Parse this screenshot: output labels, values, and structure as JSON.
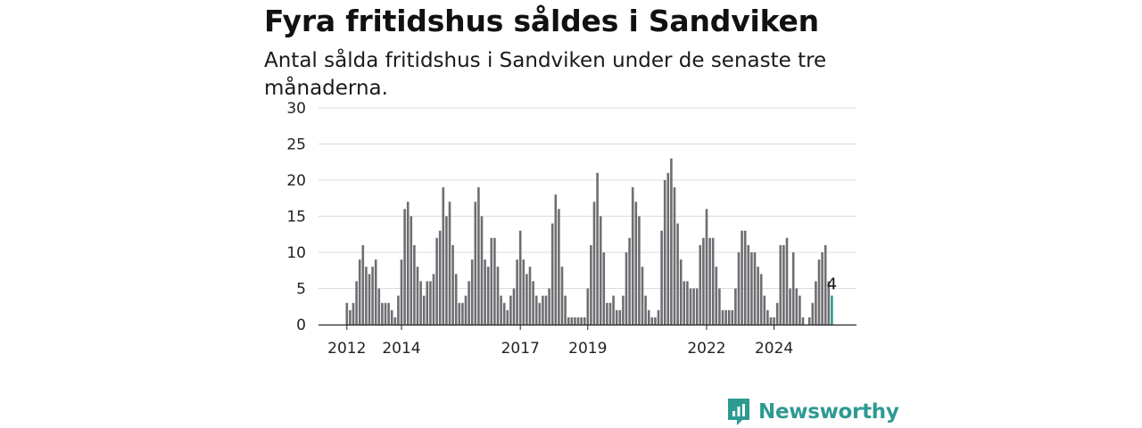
{
  "header": {
    "title": "Fyra fritidshus såldes i Sandviken",
    "subtitle": "Antal sålda fritidshus i Sandviken under de senaste tre månaderna."
  },
  "brand": {
    "name": "Newsworthy",
    "color": "#2e9a92",
    "icon": "newsworthy-logo-icon"
  },
  "chart_data": {
    "type": "bar",
    "y_ticks": [
      "0",
      "5",
      "10",
      "15",
      "20",
      "25",
      "30"
    ],
    "ylim": [
      0,
      30
    ],
    "x_ticks": [
      {
        "label": "2012",
        "index": 0
      },
      {
        "label": "2014",
        "index": 17
      },
      {
        "label": "2017",
        "index": 54
      },
      {
        "label": "2019",
        "index": 75
      },
      {
        "label": "2022",
        "index": 112
      },
      {
        "label": "2024",
        "index": 133
      }
    ],
    "bar_color": "#6e6e72",
    "highlight_color": "#2a9d8f",
    "highlight_label": "4",
    "grid": true,
    "values": [
      3,
      2,
      3,
      6,
      9,
      11,
      8,
      7,
      8,
      9,
      5,
      3,
      3,
      3,
      2,
      1,
      4,
      9,
      16,
      17,
      15,
      11,
      8,
      6,
      4,
      6,
      6,
      7,
      12,
      13,
      19,
      15,
      17,
      11,
      7,
      3,
      3,
      4,
      6,
      9,
      17,
      19,
      15,
      9,
      8,
      12,
      12,
      8,
      4,
      3,
      2,
      4,
      5,
      9,
      13,
      9,
      7,
      8,
      6,
      4,
      3,
      4,
      4,
      5,
      14,
      18,
      16,
      8,
      4,
      1,
      1,
      1,
      1,
      1,
      1,
      5,
      11,
      17,
      21,
      15,
      10,
      3,
      3,
      4,
      2,
      2,
      4,
      10,
      12,
      19,
      17,
      15,
      8,
      4,
      2,
      1,
      1,
      2,
      13,
      20,
      21,
      23,
      19,
      14,
      9,
      6,
      6,
      5,
      5,
      5,
      11,
      12,
      16,
      12,
      12,
      8,
      5,
      2,
      2,
      2,
      2,
      5,
      10,
      13,
      13,
      11,
      10,
      10,
      8,
      7,
      4,
      2,
      1,
      1,
      3,
      11,
      11,
      12,
      5,
      10,
      5,
      4,
      1,
      0,
      1,
      3,
      6,
      9,
      10,
      11,
      6,
      4
    ]
  }
}
